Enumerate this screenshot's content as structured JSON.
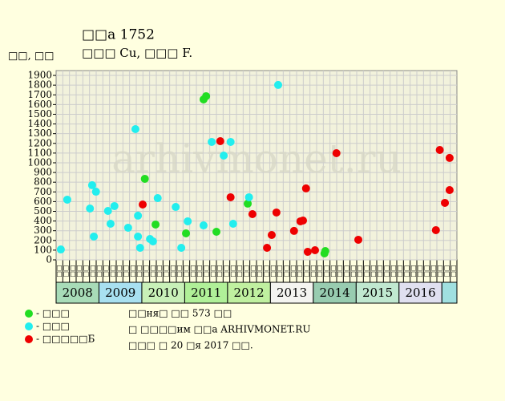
{
  "chart_data": {
    "type": "scatter",
    "title": "□□а 1752",
    "subtitle": "□□□ Cu, □□□ F.",
    "y_label": "□□, □□",
    "watermark": "arhivmonet.ru",
    "notes": [
      "□□ня□ □□ 573 □□",
      "□ □□□□им □□а ARHIVMONET.RU",
      "□□□ □ 20 □я 2017 □□."
    ],
    "xlim": [
      2008,
      2017.35
    ],
    "ylim": [
      0,
      1950
    ],
    "yticks": [
      0,
      100,
      200,
      300,
      400,
      500,
      600,
      700,
      800,
      900,
      1000,
      1100,
      1200,
      1300,
      1400,
      1500,
      1600,
      1700,
      1800,
      1900
    ],
    "grid": true,
    "column_labels": [
      "□□",
      "□□",
      "□□",
      "□□",
      "□□",
      "□□",
      "□□",
      "□□",
      "□□",
      "□□",
      "□□",
      "□□",
      "□□",
      "□□",
      "□□",
      "□□",
      "□□",
      "□□",
      "□□",
      "□□",
      "□□",
      "□□",
      "□□",
      "□□",
      "□□",
      "□□",
      "□□",
      "□□",
      "□□",
      "□□",
      "□□",
      "□□",
      "□□",
      "□□",
      "□□",
      "□□",
      "□□",
      "□□",
      "□□",
      "□□",
      "□□",
      "□□",
      "□□",
      "□□",
      "□□",
      "□□",
      "□□",
      "□□",
      "□□",
      "□□",
      "□□",
      "□□",
      "□□",
      "□□",
      "□□",
      "□□",
      "□□",
      "□□",
      "□□",
      "□□"
    ],
    "years": [
      {
        "label": "2008",
        "x": 2008,
        "color": "#a8dcb8"
      },
      {
        "label": "2009",
        "x": 2009,
        "color": "#a8e0f0"
      },
      {
        "label": "2010",
        "x": 2010,
        "color": "#c8f0b8"
      },
      {
        "label": "2011",
        "x": 2011,
        "color": "#b0f098"
      },
      {
        "label": "2012",
        "x": 2012,
        "color": "#c0f0a0"
      },
      {
        "label": "2013",
        "x": 2013,
        "color": "#f4f4f0"
      },
      {
        "label": "2014",
        "x": 2014,
        "color": "#98ccb0"
      },
      {
        "label": "2015",
        "x": 2015,
        "color": "#c0e8d0"
      },
      {
        "label": "2016",
        "x": 2016,
        "color": "#e0e0f0"
      },
      {
        "label": "",
        "x": 2017,
        "color": "#a0e0e0"
      }
    ],
    "series": [
      {
        "name": "- □□□",
        "color": "#22dd22",
        "x": [
          2010.07,
          2010.32,
          2011.03,
          2011.44,
          2011.5,
          2011.74,
          2012.47,
          2014.26,
          2014.28
        ],
        "values": [
          835,
          364,
          273,
          1653,
          1686,
          289,
          579,
          66,
          91
        ]
      },
      {
        "name": "- □□□",
        "color": "#22eeee",
        "x": [
          2008.11,
          2008.26,
          2008.79,
          2008.84,
          2008.88,
          2008.93,
          2009.21,
          2009.27,
          2009.36,
          2009.68,
          2009.85,
          2009.91,
          2009.91,
          2009.96,
          2010.19,
          2010.26,
          2010.37,
          2010.79,
          2010.92,
          2011.07,
          2011.44,
          2011.63,
          2011.91,
          2012.07,
          2012.13,
          2012.5,
          2013.18
        ],
        "values": [
          107,
          620,
          529,
          769,
          240,
          702,
          504,
          372,
          554,
          331,
          1347,
          455,
          240,
          124,
          215,
          190,
          636,
          545,
          124,
          397,
          355,
          1215,
          1074,
          1215,
          372,
          645,
          1802
        ]
      },
      {
        "name": "- □□□□□Б",
        "color": "#ee0000",
        "x": [
          2010.02,
          2011.83,
          2012.07,
          2012.58,
          2012.92,
          2013.03,
          2013.14,
          2013.55,
          2013.7,
          2013.76,
          2013.83,
          2013.87,
          2014.04,
          2014.54,
          2015.05,
          2016.86,
          2016.95,
          2017.07,
          2017.18,
          2017.18
        ],
        "values": [
          570,
          1223,
          645,
          471,
          124,
          256,
          488,
          298,
          397,
          405,
          736,
          83,
          99,
          1099,
          207,
          306,
          1132,
          587,
          719,
          1050
        ]
      }
    ]
  }
}
